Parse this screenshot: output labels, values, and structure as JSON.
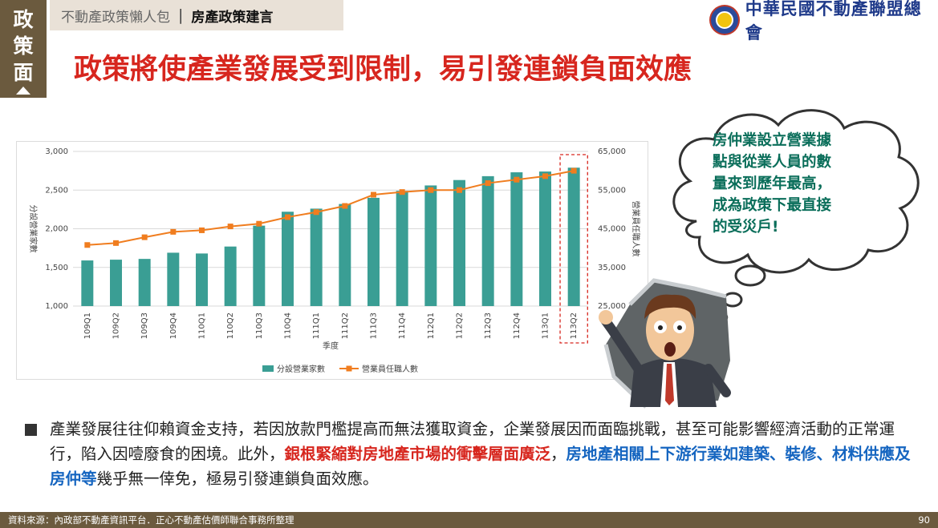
{
  "side_tab": {
    "chars": [
      "政",
      "策",
      "面"
    ]
  },
  "breadcrumb": {
    "section": "不動產政策懶人包",
    "separator": "|",
    "current": "房產政策建言"
  },
  "logo": {
    "text": "中華民國不動產聯盟總會"
  },
  "title": "政策將使產業發展受到限制，易引發連鎖負面效應",
  "callout": {
    "lines": [
      "房仲業設立營業據",
      "點與從業人員的數",
      "量來到歷年最高，",
      "成為政策下最直接",
      "的受災戶!"
    ]
  },
  "body_text": {
    "part1": "產業發展往往仰賴資金支持，若因放款門檻提高而無法獲取資金，企業發展因而面臨挑戰，甚至可能影響經濟活動的正常運行，陷入因噎廢食的困境。此外，",
    "red": "銀根緊縮對房地產市場的衝擊層面廣泛",
    "part2": "，",
    "blue": "房地產相關上下游行業如建築、裝修、材料供應及房仲等",
    "part3": "幾乎無一倖免，極易引發連鎖負面效應。"
  },
  "footer": {
    "source": "資料來源：內政部不動產資訊平台．正心不動產估價師聯合事務所整理",
    "page": "90"
  },
  "colors": {
    "brand_brown": "#6b5a3e",
    "title_red": "#d7261e",
    "bar_teal": "#3a9e94",
    "line_orange": "#f07d1f",
    "callout_green": "#0a6e5a",
    "highlight_blue": "#1565c0"
  },
  "chart_data": {
    "type": "bar",
    "categories": [
      "109Q1",
      "109Q2",
      "109Q3",
      "109Q4",
      "110Q1",
      "110Q2",
      "110Q3",
      "110Q4",
      "111Q1",
      "111Q2",
      "111Q3",
      "111Q4",
      "112Q1",
      "112Q2",
      "112Q3",
      "112Q4",
      "113Q1",
      "113Q2"
    ],
    "series": [
      {
        "name": "分設營業家數",
        "type": "bar",
        "axis": "left",
        "values": [
          1590,
          1600,
          1610,
          1690,
          1680,
          1770,
          2040,
          2220,
          2260,
          2320,
          2400,
          2490,
          2560,
          2630,
          2680,
          2730,
          2740,
          2790
        ]
      },
      {
        "name": "營業員任職人數",
        "type": "line",
        "axis": "right",
        "values": [
          40800,
          41300,
          42800,
          44200,
          44600,
          45600,
          46300,
          48000,
          49300,
          50900,
          53800,
          54500,
          55000,
          55000,
          56800,
          57700,
          58600,
          60000
        ]
      }
    ],
    "xlabel": "季度",
    "ylabel_left": "分設營業家數",
    "ylabel_right": "營業員任職人數",
    "ylim_left": [
      1000,
      3000
    ],
    "ylim_right": [
      25000,
      65000
    ],
    "yticks_left": [
      "1,000",
      "1,500",
      "2,000",
      "2,500",
      "3,000"
    ],
    "yticks_right": [
      "25,000",
      "35,000",
      "45,000",
      "55,000",
      "65,000"
    ],
    "highlight_category": "113Q2",
    "legend_position": "bottom",
    "grid": true
  }
}
